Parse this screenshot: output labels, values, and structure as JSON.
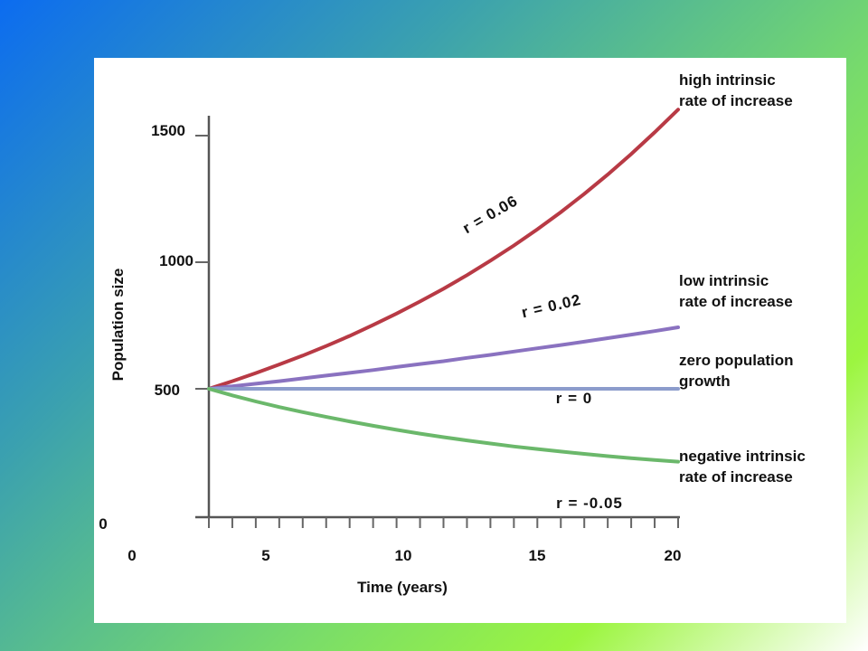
{
  "chart_data": {
    "type": "line",
    "x": [
      0,
      1,
      2,
      3,
      4,
      5,
      6,
      7,
      8,
      9,
      10,
      11,
      12,
      13,
      14,
      15,
      16,
      17,
      18,
      19,
      20
    ],
    "x_ticks": [
      "0",
      "5",
      "10",
      "15",
      "20"
    ],
    "y_ticks": [
      "0",
      "500",
      "1000",
      "1500"
    ],
    "xlabel": "Time (years)",
    "ylabel": "Population size",
    "xlim": [
      0,
      20
    ],
    "ylim": [
      0,
      1500
    ],
    "series": [
      {
        "name": "r = 0.06",
        "values": [
          500,
          530,
          562,
          596,
          631,
          669,
          709,
          752,
          797,
          845,
          895,
          949,
          1006,
          1066,
          1130,
          1198,
          1270,
          1346,
          1427,
          1513,
          1603
        ],
        "color": "#b83a45",
        "annotation": "high intrinsic rate of increase"
      },
      {
        "name": "r = 0.02",
        "values": [
          500,
          510,
          520,
          530,
          541,
          552,
          563,
          574,
          586,
          598,
          609,
          622,
          634,
          647,
          660,
          673,
          686,
          700,
          714,
          728,
          743
        ],
        "color": "#8a72c0",
        "annotation": "low intrinsic rate of increase"
      },
      {
        "name": "r = 0",
        "values": [
          500,
          500,
          500,
          500,
          500,
          500,
          500,
          500,
          500,
          500,
          500,
          500,
          500,
          500,
          500,
          500,
          500,
          500,
          500,
          500,
          500
        ],
        "color": "#8c9ccc",
        "annotation": "zero population growth"
      },
      {
        "name": "r = -0.05",
        "values": [
          500,
          474,
          450,
          428,
          408,
          389,
          371,
          354,
          338,
          323,
          309,
          296,
          284,
          272,
          262,
          252,
          243,
          234,
          226,
          219,
          212
        ],
        "color": "#6bb86b",
        "annotation": "negative intrinsic rate of increase"
      }
    ],
    "annotations": [
      [
        "high intrinsic",
        "rate of increase"
      ],
      [
        "low intrinsic",
        "rate of increase"
      ],
      [
        "zero population",
        "growth"
      ],
      [
        "negative intrinsic",
        "rate of increase"
      ]
    ],
    "grid": false,
    "legend": "none"
  }
}
